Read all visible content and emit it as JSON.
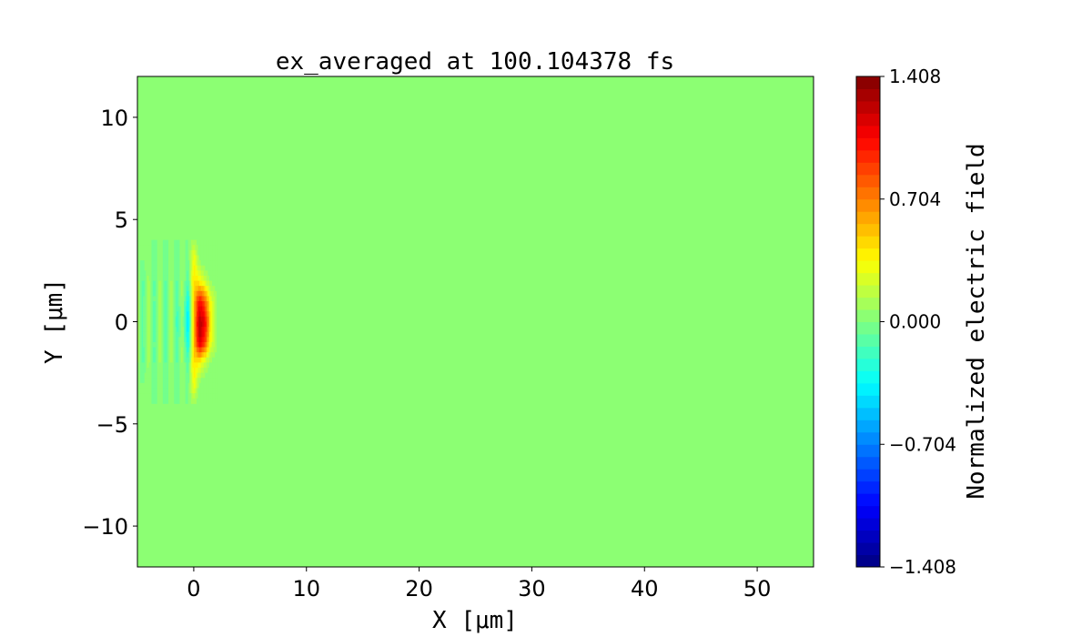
{
  "chart_data": {
    "type": "heatmap",
    "title": "ex_averaged at 100.104378 fs",
    "xlabel": "X [μm]",
    "ylabel": "Y [μm]",
    "xlim": [
      -5,
      55
    ],
    "ylim": [
      -12,
      12
    ],
    "xticks": [
      0,
      10,
      20,
      30,
      40,
      50
    ],
    "xtick_labels": [
      "0",
      "10",
      "20",
      "30",
      "40",
      "50"
    ],
    "yticks": [
      -10,
      -5,
      0,
      5,
      10
    ],
    "ytick_labels": [
      "−10",
      "−5",
      "0",
      "5",
      "10"
    ],
    "colormap": "jet",
    "levels": 40,
    "background_value": 0,
    "colorbar": {
      "label": "Normalized electric field",
      "range": [
        -1.408,
        1.408
      ],
      "ticks": [
        1.408,
        0.704,
        0.0,
        -0.704,
        -1.408
      ],
      "tick_labels": [
        "1.408",
        "0.704",
        "0.000",
        "−0.704",
        "−1.408"
      ]
    },
    "grid": false,
    "pulse_region": {
      "x": [
        -5,
        -4.5,
        -4,
        -3.5,
        -3,
        -2.5,
        -2,
        -1.5,
        -1,
        -0.5,
        0,
        0.5,
        1,
        1.5,
        2
      ],
      "y": [
        4,
        3,
        2,
        1,
        0,
        -1,
        -2,
        -3,
        -4
      ],
      "values": [
        [
          0,
          0,
          0,
          0,
          0,
          0,
          0,
          0,
          0,
          0,
          0.1,
          0,
          0,
          0,
          0
        ],
        [
          0,
          0,
          0.05,
          -0.05,
          0.05,
          -0.05,
          0.05,
          -0.05,
          0.05,
          -0.05,
          0.35,
          0.05,
          0,
          0,
          0
        ],
        [
          0.1,
          -0.1,
          0.1,
          -0.1,
          0.1,
          -0.1,
          0.1,
          -0.1,
          0.1,
          -0.15,
          0.45,
          0.35,
          0.2,
          0.05,
          0
        ],
        [
          0.1,
          -0.1,
          0.15,
          -0.1,
          0.15,
          -0.15,
          0.15,
          -0.15,
          0.1,
          -0.35,
          0.5,
          1.05,
          0.8,
          0.3,
          0.1
        ],
        [
          0.1,
          -0.1,
          0.15,
          -0.15,
          0.15,
          -0.15,
          0.15,
          -0.2,
          0.05,
          -0.45,
          0.5,
          1.3,
          1.1,
          0.4,
          0.1
        ],
        [
          0.1,
          -0.1,
          0.15,
          -0.1,
          0.15,
          -0.15,
          0.15,
          -0.15,
          0.1,
          -0.35,
          0.5,
          1.2,
          0.9,
          0.3,
          0.1
        ],
        [
          0.1,
          -0.1,
          0.1,
          -0.1,
          0.1,
          -0.1,
          0.1,
          -0.1,
          0.1,
          -0.15,
          0.45,
          0.35,
          0.2,
          0.05,
          0
        ],
        [
          0,
          0,
          0.05,
          -0.05,
          0.05,
          -0.05,
          0.05,
          -0.05,
          0.05,
          -0.05,
          0.35,
          0.05,
          0,
          0,
          0
        ],
        [
          0,
          0,
          0,
          0,
          0,
          0,
          0,
          0,
          0,
          0,
          0.1,
          0,
          0,
          0,
          0
        ]
      ]
    }
  }
}
